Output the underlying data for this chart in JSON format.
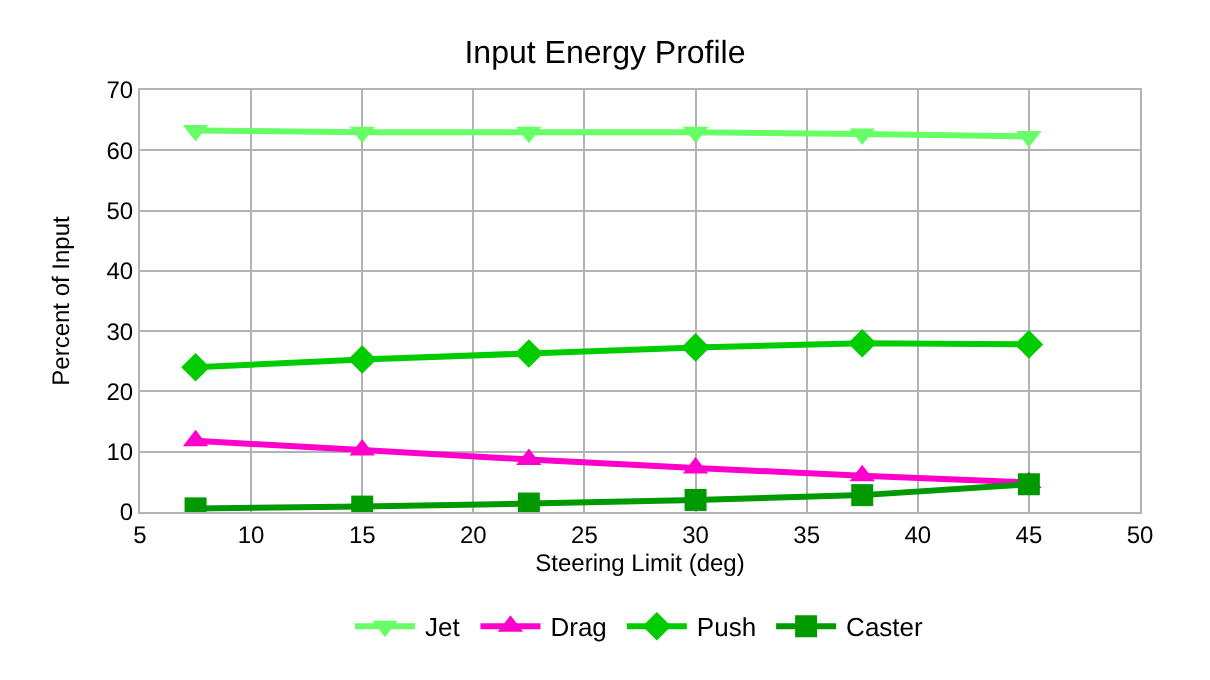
{
  "chart_data": {
    "type": "line",
    "title": "Input Energy Profile",
    "xlabel": "Steering Limit (deg)",
    "ylabel": "Percent of Input",
    "x": [
      7.5,
      15,
      22.5,
      30,
      37.5,
      45
    ],
    "series": [
      {
        "name": "Jet",
        "color": "#66ff66",
        "marker": "triangle-down",
        "values": [
          63.3,
          63.0,
          63.0,
          63.0,
          62.7,
          62.3
        ]
      },
      {
        "name": "Drag",
        "color": "#ff00cc",
        "marker": "triangle",
        "values": [
          11.8,
          10.3,
          8.7,
          7.3,
          6.0,
          4.9
        ]
      },
      {
        "name": "Push",
        "color": "#00cc00",
        "marker": "diamond",
        "values": [
          24.0,
          25.3,
          26.3,
          27.3,
          28.0,
          27.8
        ]
      },
      {
        "name": "Caster",
        "color": "#009900",
        "marker": "square",
        "values": [
          0.6,
          0.9,
          1.4,
          2.0,
          2.8,
          4.6
        ]
      }
    ],
    "xlim": [
      5,
      50
    ],
    "xticks": [
      5,
      10,
      15,
      20,
      25,
      30,
      35,
      40,
      45,
      50
    ],
    "ylim": [
      0,
      70
    ],
    "yticks": [
      0,
      10,
      20,
      30,
      40,
      50,
      60,
      70
    ],
    "grid": true,
    "legend": "bottom",
    "line_style": "solid"
  }
}
